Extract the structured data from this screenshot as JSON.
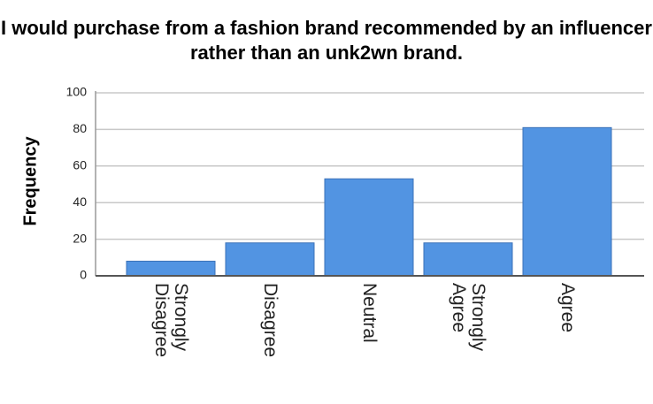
{
  "chart_data": {
    "type": "bar",
    "title": "I would purchase from a fashion brand recommended by an influencer rather than an unk2wn brand.",
    "y_label": "Frequency",
    "categories": [
      "Strongly Disagree",
      "Disagree",
      "Neutral",
      "Strongly Agree",
      "Agree"
    ],
    "values": [
      8,
      18,
      53,
      18,
      81
    ],
    "color": "#5294e2",
    "ylim": [
      0,
      100
    ],
    "yticks": [
      0,
      20,
      40,
      60,
      80,
      100
    ],
    "grid": true
  }
}
